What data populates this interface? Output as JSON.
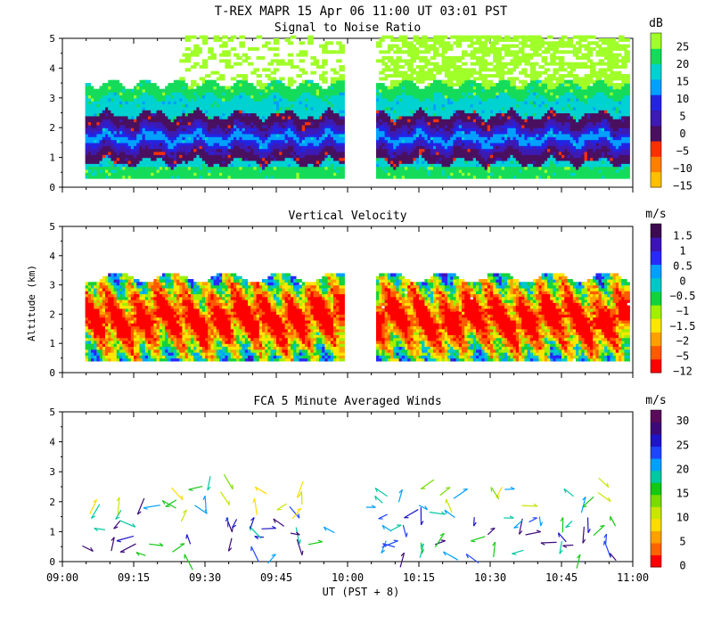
{
  "header": {
    "title": "T-REX  MAPR 15 Apr 06  11:00 UT  03:01  PST"
  },
  "axes": {
    "ylabel": "Altitude (km)",
    "xlabel": "UT  (PST + 8)",
    "y_ticks": [
      "0",
      "1",
      "2",
      "3",
      "4",
      "5"
    ],
    "x_ticks": [
      "09:00",
      "09:15",
      "09:30",
      "09:45",
      "10:00",
      "10:15",
      "10:30",
      "10:45",
      "11:00"
    ],
    "xlim_hours": [
      9.0,
      11.0
    ],
    "ylim_km": [
      0,
      5
    ]
  },
  "chart_data": [
    {
      "type": "heatmap",
      "title": "Signal to Noise Ratio",
      "unit": "dB",
      "ylim": [
        0,
        5
      ],
      "colorbar_ticks": [
        "25",
        "20",
        "15",
        "10",
        "5",
        "0",
        "−5",
        "−10",
        "−15"
      ],
      "colorbar_colors": [
        "#ffc000",
        "#ff8000",
        "#ff3000",
        "#4a1060",
        "#3c1ab4",
        "#2323e6",
        "#00a0ff",
        "#00d2d2",
        "#14dc5a",
        "#a0ff28"
      ],
      "data_gap_hours": [
        9.97,
        10.09
      ],
      "data_range_hours": [
        9.08,
        10.97
      ],
      "features": {
        "band_center_km": [
          1.4,
          1.8
        ],
        "band_label": "-5 to 5 dB",
        "top_of_data_km": 3.4,
        "sparse_returns_km": [
          3.4,
          5.0
        ]
      }
    },
    {
      "type": "heatmap",
      "title": "Vertical Velocity",
      "unit": "m/s",
      "ylim": [
        0,
        5
      ],
      "colorbar_ticks": [
        "1.5",
        "1",
        "0.5",
        "0",
        "−0.5",
        "−1",
        "−1.5",
        "−2",
        "−5",
        "−12"
      ],
      "colorbar_colors": [
        "#ff0000",
        "#ff5a00",
        "#ffa000",
        "#ffe600",
        "#a0f000",
        "#14d23c",
        "#00c8c8",
        "#00a0ff",
        "#2828ff",
        "#3c14b4",
        "#3c0a50"
      ],
      "data_gap_hours": [
        9.97,
        10.09
      ],
      "features": {
        "updraft_core_km": [
          1.3,
          2.3
        ],
        "top_of_data_km": 3.4
      }
    },
    {
      "type": "scatter",
      "title": "FCA 5 Minute Averaged Winds",
      "unit": "m/s",
      "ylim": [
        0,
        5
      ],
      "colorbar_ticks": [
        "30",
        "25",
        "20",
        "15",
        "10",
        "5",
        "0"
      ],
      "colorbar_colors": [
        "#ff0000",
        "#ff6400",
        "#ffa000",
        "#ffdc00",
        "#c8e600",
        "#78dc00",
        "#14c814",
        "#00c8a0",
        "#00a0ff",
        "#1e46ff",
        "#1e14c8",
        "#3c0a78",
        "#5a0a5a"
      ],
      "wind_times_hours": [
        9.11,
        9.19,
        9.27,
        9.35,
        9.43,
        9.51,
        9.59,
        9.67,
        9.75,
        9.83,
        9.91,
        10.11,
        10.19,
        10.27,
        10.35,
        10.43,
        10.51,
        10.59,
        10.67,
        10.75,
        10.83,
        10.91
      ],
      "wind_altitudes_km": [
        0.3,
        0.6,
        0.9,
        1.2,
        1.5,
        1.8,
        2.1,
        2.4
      ]
    }
  ]
}
